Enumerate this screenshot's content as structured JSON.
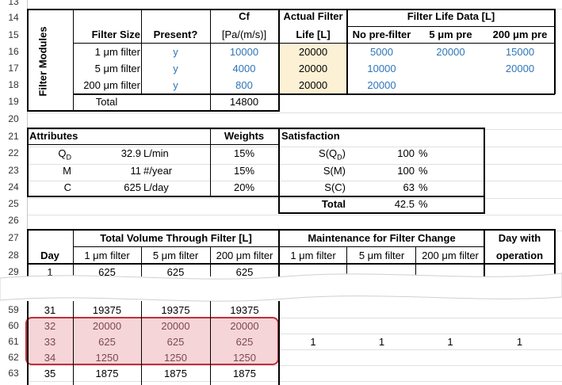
{
  "row_numbers": [
    "13",
    "14",
    "15",
    "16",
    "17",
    "18",
    "19",
    "20",
    "21",
    "22",
    "23",
    "24",
    "25",
    "26",
    "27",
    "28",
    "29",
    "59",
    "60",
    "61",
    "62",
    "63"
  ],
  "filter_modules": {
    "side_label": "Filter Modules",
    "headers": {
      "filter_size": "Filter Size",
      "present": "Present?",
      "cf_top": "Cf",
      "cf_unit": "[Pa/(m/s)]",
      "actual_top": "Actual Filter",
      "actual_bottom": "Life [L]",
      "life_data": "Filter Life Data [L]",
      "no_pre": "No pre-filter",
      "pre5": "5 μm pre",
      "pre200": "200 μm pre"
    },
    "rows": [
      {
        "size": "1 μm filter",
        "present": "y",
        "cf": "10000",
        "actual": "20000",
        "no_pre": "5000",
        "pre5": "20000",
        "pre200": "15000"
      },
      {
        "size": "5 μm filter",
        "present": "y",
        "cf": "4000",
        "actual": "20000",
        "no_pre": "10000",
        "pre5": "",
        "pre200": "20000"
      },
      {
        "size": "200 μm filter",
        "present": "y",
        "cf": "800",
        "actual": "20000",
        "no_pre": "20000",
        "pre5": "",
        "pre200": ""
      }
    ],
    "total_label": "Total",
    "total_cf": "14800"
  },
  "attributes": {
    "header": "Attributes",
    "weights_header": "Weights",
    "rows": [
      {
        "name": "Q",
        "sub": "D",
        "value": "32.9",
        "unit": "L/min",
        "weight": "15%"
      },
      {
        "name": "M",
        "sub": "",
        "value": "11",
        "unit": "#/year",
        "weight": "15%"
      },
      {
        "name": "C",
        "sub": "",
        "value": "625",
        "unit": "L/day",
        "weight": "20%"
      }
    ]
  },
  "satisfaction": {
    "header": "Satisfaction",
    "rows": [
      {
        "label_pre": "S(Q",
        "label_sub": "D",
        "label_post": ")",
        "value": "100",
        "unit": "%"
      },
      {
        "label_pre": "S(M)",
        "label_sub": "",
        "label_post": "",
        "value": "100",
        "unit": "%"
      },
      {
        "label_pre": "S(C)",
        "label_sub": "",
        "label_post": "",
        "value": "63",
        "unit": "%"
      }
    ],
    "total_label": "Total",
    "total_value": "42.5",
    "total_unit": "%"
  },
  "volume": {
    "header": "Total Volume Through Filter [L]",
    "maintenance_header": "Maintenance for Filter Change",
    "day_with_top": "Day with",
    "day_with_bottom": "operation",
    "day_label": "Day",
    "cols": [
      "1 μm filter",
      "5 μm filter",
      "200 μm filter"
    ],
    "maint_cols": [
      "1 μm filter",
      "5 μm filter",
      "200 μm filter"
    ],
    "rows": [
      {
        "day": "1",
        "v1": "625",
        "v2": "625",
        "v3": "625"
      },
      {
        "day": "31",
        "v1": "19375",
        "v2": "19375",
        "v3": "19375"
      },
      {
        "day": "32",
        "v1": "20000",
        "v2": "20000",
        "v3": "20000"
      },
      {
        "day": "33",
        "v1": "625",
        "v2": "625",
        "v3": "625"
      },
      {
        "day": "34",
        "v1": "1250",
        "v2": "1250",
        "v3": "1250"
      },
      {
        "day": "35",
        "v1": "1875",
        "v2": "1875",
        "v3": "1875"
      }
    ],
    "maintenance_row": {
      "m1": "1",
      "m2": "1",
      "m3": "1",
      "op": "1"
    }
  },
  "colors": {
    "blue_values": "#2e75b6",
    "actual_fill": "#fdf1d5",
    "highlight_border": "#c0303a",
    "highlight_fill": "#f6d5d8"
  }
}
